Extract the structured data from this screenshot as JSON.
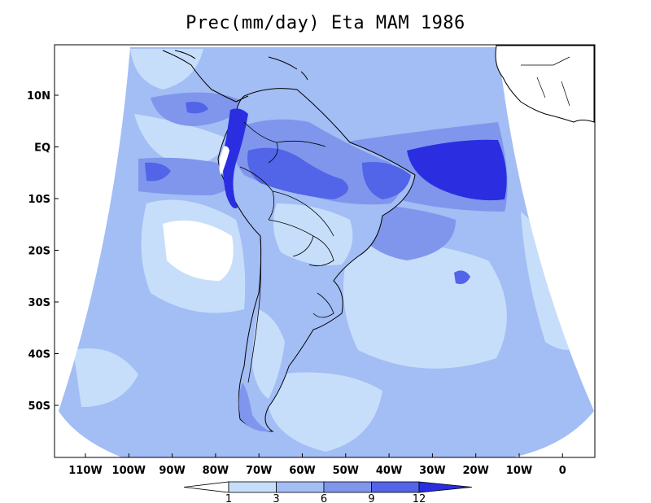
{
  "title": "Prec(mm/day) Eta MAM 1986",
  "axes": {
    "lat_ticks": [
      "10N",
      "EQ",
      "10S",
      "20S",
      "30S",
      "40S",
      "50S"
    ],
    "lon_ticks": [
      "110W",
      "100W",
      "90W",
      "80W",
      "70W",
      "60W",
      "50W",
      "40W",
      "30W",
      "20W",
      "10W",
      "0"
    ]
  },
  "legend": {
    "levels": [
      "1",
      "3",
      "6",
      "9",
      "12"
    ],
    "colors": [
      "#ffffff",
      "#c6defa",
      "#a3bdf5",
      "#7f96ec",
      "#5264e8",
      "#2a2ee0"
    ]
  },
  "palette": {
    "ocean_low": "#c6defa",
    "ocean_mid": "#a3bdf5",
    "high": "#7f96ec",
    "very_high": "#5264e8",
    "peak": "#2a2ee0",
    "coast": "#000000"
  }
}
